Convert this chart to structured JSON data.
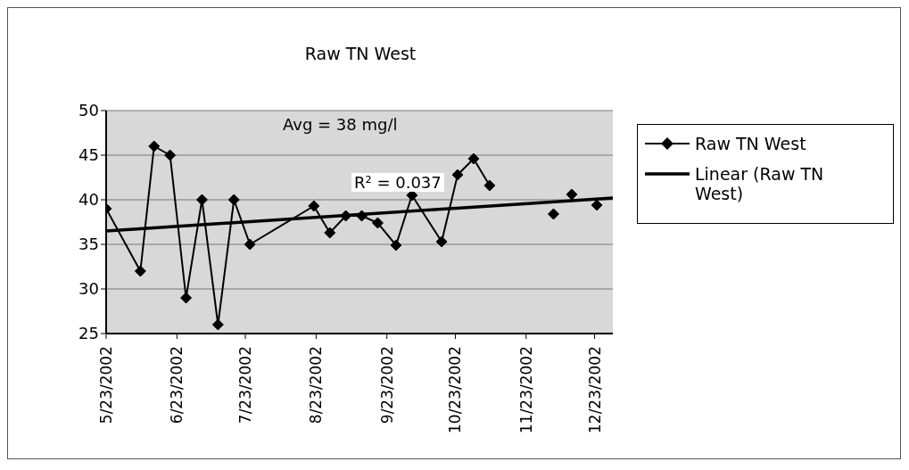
{
  "chart_data": {
    "type": "line",
    "title": "Raw TN  West",
    "x": [
      "2002-05-23",
      "2002-06-07",
      "2002-06-13",
      "2002-06-20",
      "2002-06-27",
      "2002-07-04",
      "2002-07-11",
      "2002-07-18",
      "2002-07-25",
      "2002-08-22",
      "2002-08-29",
      "2002-09-05",
      "2002-09-12",
      "2002-09-19",
      "2002-09-27",
      "2002-10-04",
      "2002-10-17",
      "2002-10-24",
      "2002-10-31",
      "2002-11-07",
      "2002-11-21",
      "2002-12-05",
      "2002-12-09",
      "2002-12-13",
      "2002-12-19",
      "2002-12-24"
    ],
    "series": [
      {
        "name": "Raw TN West",
        "color": "#000000",
        "marker": "diamond",
        "values": [
          39,
          32,
          46,
          45,
          29,
          40,
          26,
          40,
          35,
          39.3,
          36.3,
          38.2,
          38.2,
          37.4,
          34.9,
          40.5,
          35.3,
          42.8,
          44.6,
          41.6,
          null,
          38.4,
          null,
          40.6,
          null,
          39.4
        ]
      },
      {
        "name": "Linear (Raw TN West)",
        "type": "line",
        "color": "#000000",
        "marker": "none",
        "x": [
          "2002-05-23",
          "2002-12-31"
        ],
        "values": [
          36.5,
          40.2
        ]
      }
    ],
    "xlim": [
      "2002-05-23",
      "2002-12-31"
    ],
    "xticks": [
      {
        "value": "2002-05-23",
        "label": "5/23/2002"
      },
      {
        "value": "2002-06-23",
        "label": "6/23/2002"
      },
      {
        "value": "2002-07-23",
        "label": "7/23/2002"
      },
      {
        "value": "2002-08-23",
        "label": "8/23/2002"
      },
      {
        "value": "2002-09-23",
        "label": "9/23/2002"
      },
      {
        "value": "2002-10-23",
        "label": "10/23/2002"
      },
      {
        "value": "2002-11-23",
        "label": "11/23/2002"
      },
      {
        "value": "2002-12-23",
        "label": "12/23/2002"
      }
    ],
    "ylim": [
      25,
      50
    ],
    "yticks": [
      25,
      30,
      35,
      40,
      45,
      50
    ],
    "grid": "y",
    "legend": "right",
    "annotations": [
      "Avg = 38 mg/l",
      "R² = 0.037"
    ]
  }
}
